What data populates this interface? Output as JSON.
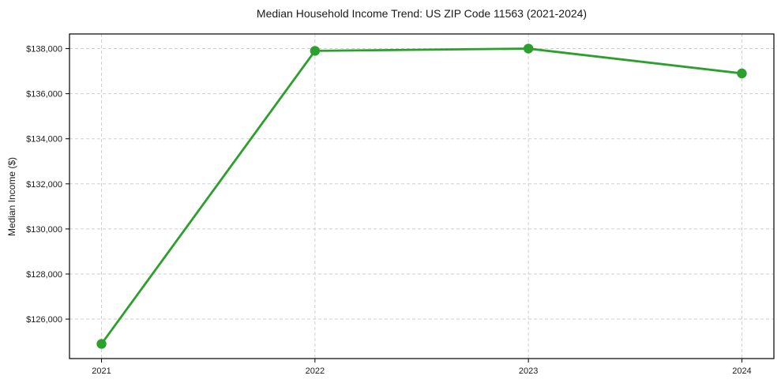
{
  "figure": {
    "background": "#ffffff"
  },
  "chart_data": {
    "type": "line",
    "title": "Median Household Income Trend: US ZIP Code 11563 (2021-2024)",
    "xlabel": "",
    "ylabel": "Median Income ($)",
    "x": [
      2021,
      2022,
      2023,
      2024
    ],
    "series": [
      {
        "name": "median-household-income",
        "values": [
          124900,
          137900,
          138000,
          136900
        ],
        "color": "#2ca02c",
        "marker": "circle"
      }
    ],
    "xtick_values": [
      2021,
      2022,
      2023,
      2024
    ],
    "xtick_labels": [
      "2021",
      "2022",
      "2023",
      "2024"
    ],
    "ytick_values": [
      126000,
      128000,
      130000,
      132000,
      134000,
      136000,
      138000
    ],
    "ytick_labels": [
      "$126,000",
      "$128,000",
      "$130,000",
      "$132,000",
      "$134,000",
      "$136,000",
      "$138,000"
    ],
    "xlim": [
      2020.85,
      2024.15
    ],
    "ylim": [
      124250,
      138650
    ],
    "grid": true,
    "grid_color": "#cfcfcf",
    "axis_color": "#000000",
    "legend": "none"
  }
}
